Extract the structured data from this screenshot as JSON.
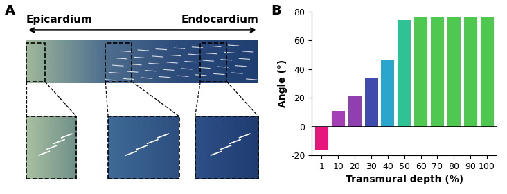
{
  "panel_a": {
    "label": "A",
    "left_label": "Epicardium",
    "right_label": "Endocardium"
  },
  "chart_data": {
    "type": "bar",
    "title": "B",
    "x_label": "Transmural depth (%)",
    "y_label": "Angle (°)",
    "categories": [
      "1",
      "10",
      "20",
      "30",
      "40",
      "50",
      "60",
      "70",
      "80",
      "90",
      "100"
    ],
    "values": [
      -16,
      11,
      21,
      34,
      46,
      74,
      76,
      76,
      76,
      76,
      76
    ],
    "colors": [
      "#e6177a",
      "#a43fb8",
      "#8f3fb0",
      "#3f4cae",
      "#2aa6cc",
      "#2ec295",
      "#4fc84f",
      "#4fc84f",
      "#4fc84f",
      "#4fc84f",
      "#4fc84f"
    ],
    "ylim": [
      -20,
      80
    ],
    "yticks": [
      -20,
      0,
      20,
      40,
      60,
      80
    ],
    "grid": false
  }
}
